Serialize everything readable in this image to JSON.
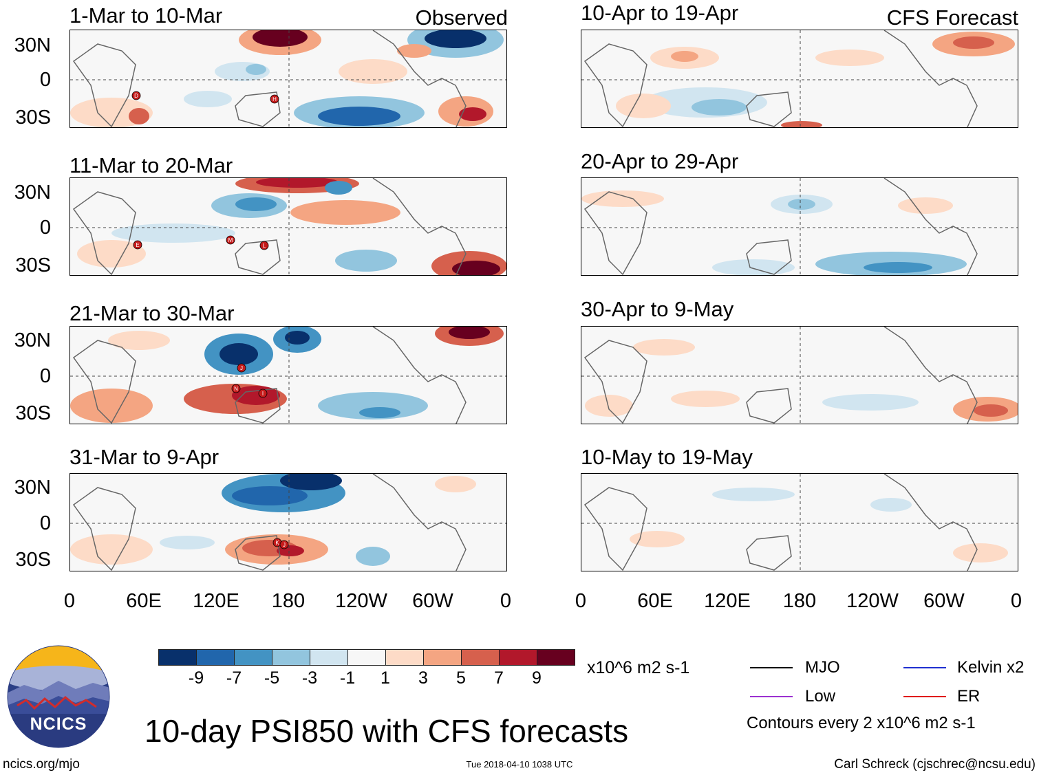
{
  "figure": {
    "title": "10-day PSI850 with CFS forecasts",
    "website": "ncics.org/mjo",
    "timestamp": "Tue 2018-04-10 1038 UTC",
    "author": "Carl Schreck (cjschrec@ncsu.edu)",
    "logo_text": "NCICS"
  },
  "columns": {
    "observed_tag": "Observed",
    "forecast_tag": "CFS Forecast"
  },
  "axes": {
    "lat_labels": [
      "30N",
      "0",
      "30S"
    ],
    "lon_labels": [
      "0",
      "60E",
      "120E",
      "180",
      "120W",
      "60W",
      "0"
    ]
  },
  "observed_panels": [
    {
      "period": "1-Mar to 10-Mar",
      "storms": [
        "D",
        "H"
      ]
    },
    {
      "period": "11-Mar to 20-Mar",
      "storms": [
        "E",
        "M",
        "L"
      ]
    },
    {
      "period": "21-Mar to 30-Mar",
      "storms": [
        "J",
        "N",
        "I"
      ]
    },
    {
      "period": "31-Mar to 9-Apr",
      "storms": [
        "K",
        "J"
      ]
    }
  ],
  "forecast_panels": [
    {
      "period": "10-Apr to 19-Apr"
    },
    {
      "period": "20-Apr to 29-Apr"
    },
    {
      "period": "30-Apr to 9-May"
    },
    {
      "period": "10-May to 19-May"
    }
  ],
  "colorbar": {
    "units": "x10^6 m2 s-1",
    "labels": [
      "-9",
      "-7",
      "-5",
      "-3",
      "-1",
      "1",
      "3",
      "5",
      "7",
      "9"
    ],
    "colors": [
      "#08306b",
      "#2166ac",
      "#4393c3",
      "#92c5de",
      "#d1e5f0",
      "#f7f7f7",
      "#fddbc7",
      "#f4a582",
      "#d6604d",
      "#b2182b",
      "#67001f"
    ]
  },
  "legend": {
    "items": [
      {
        "label": "MJO",
        "color": "#000000"
      },
      {
        "label": "Kelvin x2",
        "color": "#1f2fd0"
      },
      {
        "label": "Low",
        "color": "#9b30d0"
      },
      {
        "label": "ER",
        "color": "#e01b1b"
      }
    ],
    "contour_note": "Contours every 2 x10^6 m2 s-1"
  }
}
